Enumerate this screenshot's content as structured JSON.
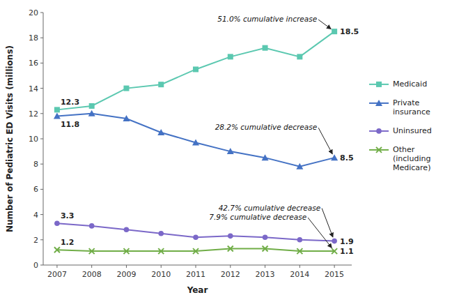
{
  "chart_data": {
    "type": "line",
    "xlabel": "Year",
    "ylabel": "Number of Pediatric ED Visits (millions)",
    "x": [
      2007,
      2008,
      2009,
      2010,
      2011,
      2012,
      2013,
      2014,
      2015
    ],
    "series": [
      {
        "name": "Medicaid",
        "color": "#5bc8b0",
        "marker": "square",
        "values": [
          12.3,
          12.6,
          14.0,
          14.3,
          15.5,
          16.5,
          17.2,
          16.5,
          18.5
        ],
        "value_labels": [
          "12.3",
          null,
          null,
          null,
          null,
          null,
          null,
          null,
          "18.5"
        ]
      },
      {
        "name": "Private\ninsurance",
        "color": "#4472c4",
        "marker": "triangle",
        "values": [
          11.8,
          12.0,
          11.6,
          10.5,
          9.7,
          9.0,
          8.5,
          7.8,
          8.5
        ],
        "value_labels": [
          "11.8",
          null,
          null,
          null,
          null,
          null,
          null,
          null,
          "8.5"
        ]
      },
      {
        "name": "Uninsured",
        "color": "#7b68c8",
        "marker": "circle",
        "values": [
          3.3,
          3.1,
          2.8,
          2.5,
          2.2,
          2.3,
          2.2,
          2.0,
          1.9
        ],
        "value_labels": [
          "3.3",
          null,
          null,
          null,
          null,
          null,
          null,
          null,
          "1.9"
        ]
      },
      {
        "name": "Other\n(including\nMedicare)",
        "color": "#70ad47",
        "marker": "x",
        "values": [
          1.2,
          1.1,
          1.1,
          1.1,
          1.1,
          1.3,
          1.3,
          1.1,
          1.1
        ],
        "value_labels": [
          "1.2",
          null,
          null,
          null,
          null,
          null,
          null,
          null,
          "1.1"
        ]
      }
    ],
    "xlim": [
      2006.6,
      2015.5
    ],
    "xticks": [
      2007,
      2008,
      2009,
      2010,
      2011,
      2012,
      2013,
      2014,
      2015
    ],
    "ylim": [
      0,
      20
    ],
    "yticks": [
      0,
      2,
      4,
      6,
      8,
      10,
      12,
      14,
      16,
      18,
      20
    ],
    "grid": false,
    "legend": "right",
    "data_labels": true,
    "annotations": [
      {
        "text": "51.0% cumulative increase",
        "x": 2015.0,
        "y": 18.5
      },
      {
        "text": "28.2% cumulative decrease",
        "x": 2015.0,
        "y": 8.5
      },
      {
        "text": "42.7% cumulative decrease",
        "x": 2015.0,
        "y": 1.9
      },
      {
        "text": "7.9% cumulative decrease",
        "x": 2015.0,
        "y": 1.1
      }
    ]
  }
}
